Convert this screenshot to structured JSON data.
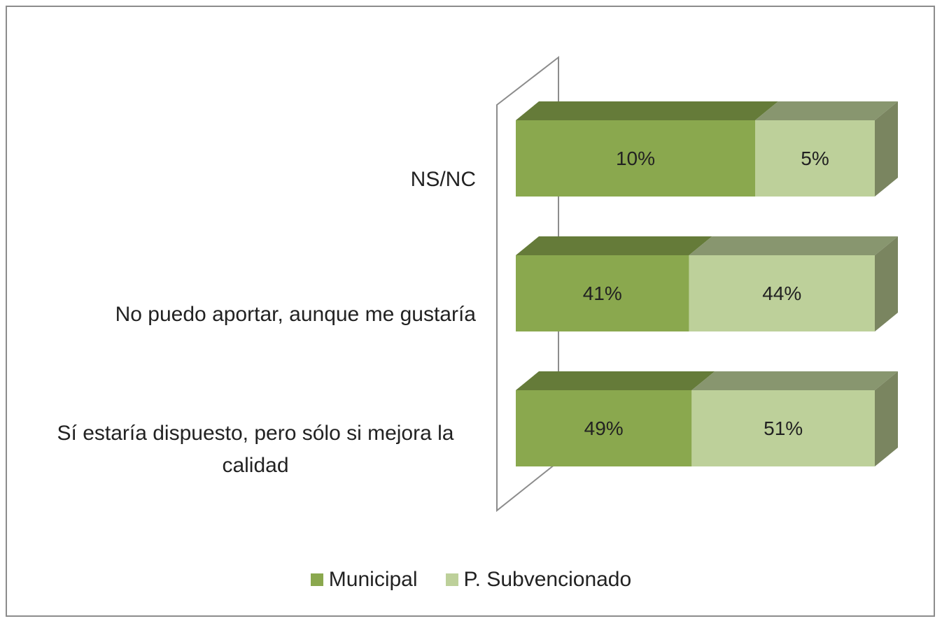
{
  "chart_data": {
    "type": "bar",
    "orientation": "horizontal",
    "stacked": "percent",
    "three_d": true,
    "categories": [
      "NS/NC",
      "No puedo aportar, aunque me gustaría",
      "Sí estaría dispuesto, pero sólo si mejora la calidad"
    ],
    "series": [
      {
        "name": "Municipal",
        "color": "#8aa84e",
        "values": [
          10,
          41,
          49
        ],
        "value_labels": [
          "10%",
          "41%",
          "49%"
        ]
      },
      {
        "name": "P. Subvencionado",
        "color": "#bdd09a",
        "values": [
          5,
          44,
          51
        ],
        "value_labels": [
          "5%",
          "44%",
          "51%"
        ]
      }
    ],
    "legend": "bottom"
  }
}
